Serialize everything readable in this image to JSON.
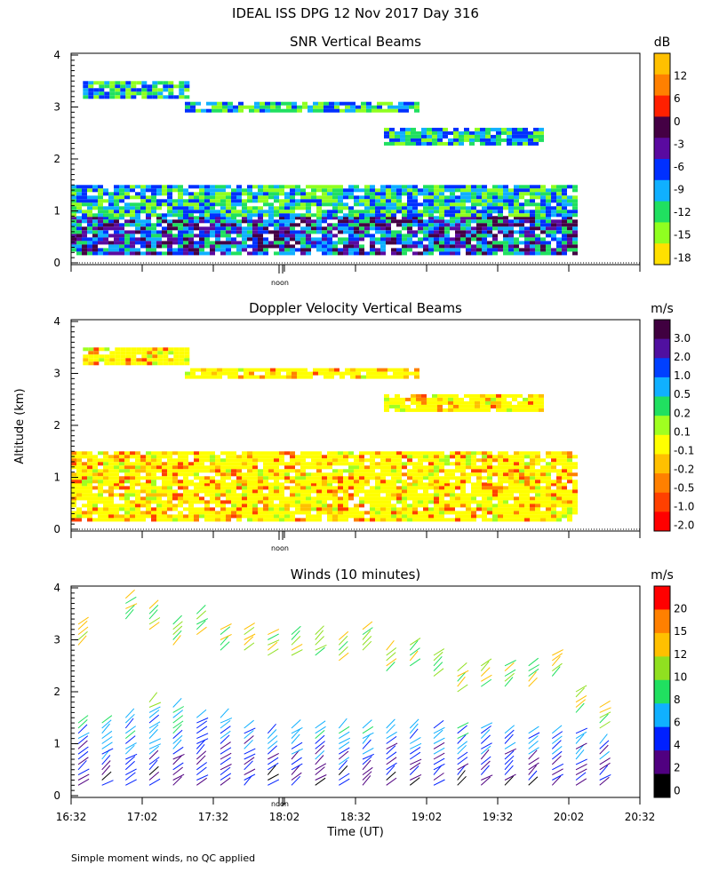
{
  "figure": {
    "title": "IDEAL ISS DPG  12 Nov 2017 Day 316",
    "ylabel": "Altitude (km)",
    "xlabel": "Time (UT)",
    "footnote": "Simple moment winds, no QC applied",
    "noon_label": "noon",
    "x_ticks": [
      "16:32",
      "17:02",
      "17:32",
      "18:02",
      "18:32",
      "19:02",
      "19:32",
      "20:02",
      "20:32"
    ]
  },
  "chart_data": [
    {
      "type": "heatmap",
      "title": "SNR Vertical Beams",
      "ylabel": "Altitude (km)",
      "xlim": [
        "16:32",
        "20:32"
      ],
      "ylim": [
        0,
        4
      ],
      "y_ticks": [
        0,
        1,
        2,
        3,
        4
      ],
      "colorbar": {
        "unit": "dB",
        "labels": [
          "12",
          "6",
          "0",
          "-3",
          "-6",
          "-9",
          "-12",
          "-15",
          "-18"
        ],
        "colors": [
          "#ffc000",
          "#ff8000",
          "#ff2000",
          "#440044",
          "#5a0aa0",
          "#0030ff",
          "#10b0ff",
          "#20e060",
          "#90ff20",
          "#ffe000"
        ]
      },
      "layers": [
        {
          "alt_km": [
            0.2,
            0.9
          ],
          "time": [
            "16:32",
            "20:05"
          ],
          "value_range_db": [
            -15,
            0
          ]
        },
        {
          "alt_km": [
            0.9,
            1.5
          ],
          "time": [
            "16:32",
            "20:05"
          ],
          "value_range_db": [
            -18,
            -6
          ]
        },
        {
          "alt_km": [
            2.3,
            2.6
          ],
          "time": [
            "18:44",
            "19:50"
          ],
          "value_range_db": [
            -18,
            -3
          ]
        },
        {
          "alt_km": [
            2.9,
            3.1
          ],
          "time": [
            "17:20",
            "18:58"
          ],
          "value_range_db": [
            -18,
            -6
          ]
        },
        {
          "alt_km": [
            3.2,
            3.5
          ],
          "time": [
            "16:37",
            "17:20"
          ],
          "value_range_db": [
            -18,
            -9
          ]
        }
      ]
    },
    {
      "type": "heatmap",
      "title": "Doppler Velocity Vertical Beams",
      "ylabel": "Altitude (km)",
      "xlim": [
        "16:32",
        "20:32"
      ],
      "ylim": [
        0,
        4
      ],
      "y_ticks": [
        0,
        1,
        2,
        3,
        4
      ],
      "colorbar": {
        "unit": "m/s",
        "labels": [
          "3.0",
          "2.0",
          "1.0",
          "0.5",
          "0.2",
          "0.1",
          "-0.1",
          "-0.2",
          "-0.5",
          "-1.0",
          "-2.0"
        ],
        "colors": [
          "#400040",
          "#5010a0",
          "#0040ff",
          "#10b0ff",
          "#20e060",
          "#a0ff20",
          "#ffff00",
          "#ffc000",
          "#ff8000",
          "#ff4000",
          "#ff0000"
        ]
      },
      "layers": [
        {
          "alt_km": [
            0.2,
            0.9
          ],
          "time": [
            "16:32",
            "20:05"
          ],
          "value_range_ms": [
            -1.0,
            0.2
          ]
        },
        {
          "alt_km": [
            0.9,
            1.5
          ],
          "time": [
            "16:32",
            "20:05"
          ],
          "value_range_ms": [
            -0.5,
            0.2
          ]
        },
        {
          "alt_km": [
            2.3,
            2.6
          ],
          "time": [
            "18:44",
            "19:50"
          ],
          "value_range_ms": [
            -0.5,
            0.1
          ]
        },
        {
          "alt_km": [
            2.9,
            3.1
          ],
          "time": [
            "17:20",
            "18:58"
          ],
          "value_range_ms": [
            -0.2,
            0.2
          ]
        },
        {
          "alt_km": [
            3.2,
            3.5
          ],
          "time": [
            "16:37",
            "17:20"
          ],
          "value_range_ms": [
            -0.5,
            0.1
          ]
        }
      ]
    },
    {
      "type": "scatter",
      "title": "Winds (10 minutes)",
      "ylabel": "Altitude (km)",
      "xlabel": "Time (UT)",
      "xlim": [
        "16:32",
        "20:32"
      ],
      "ylim": [
        0,
        4
      ],
      "y_ticks": [
        0,
        1,
        2,
        3,
        4
      ],
      "colorbar": {
        "unit": "m/s",
        "labels": [
          "20",
          "15",
          "12",
          "10",
          "8",
          "6",
          "4",
          "2",
          "0"
        ],
        "colors": [
          "#ff0000",
          "#ff8000",
          "#ffc000",
          "#90e020",
          "#20e060",
          "#10b0ff",
          "#0020ff",
          "#500080",
          "#000000"
        ]
      },
      "profiles": [
        {
          "time": "16:32",
          "tops_km": [
            1.5,
            3.4
          ]
        },
        {
          "time": "16:42",
          "tops_km": [
            1.5
          ]
        },
        {
          "time": "16:52",
          "tops_km": [
            1.6,
            3.9
          ]
        },
        {
          "time": "17:02",
          "tops_km": [
            1.9,
            3.7
          ]
        },
        {
          "time": "17:12",
          "tops_km": [
            1.8,
            3.4
          ]
        },
        {
          "time": "17:22",
          "tops_km": [
            1.6,
            3.6
          ]
        },
        {
          "time": "17:32",
          "tops_km": [
            1.6,
            3.3
          ]
        },
        {
          "time": "17:42",
          "tops_km": [
            1.3,
            3.3
          ]
        },
        {
          "time": "17:52",
          "tops_km": [
            1.2,
            3.2
          ]
        },
        {
          "time": "18:02",
          "tops_km": [
            1.4,
            3.2
          ]
        },
        {
          "time": "18:12",
          "tops_km": [
            1.4,
            3.2
          ]
        },
        {
          "time": "18:22",
          "tops_km": [
            1.3,
            3.1
          ]
        },
        {
          "time": "18:32",
          "tops_km": [
            1.3,
            3.3
          ]
        },
        {
          "time": "18:42",
          "tops_km": [
            1.4,
            2.9
          ]
        },
        {
          "time": "18:52",
          "tops_km": [
            1.3,
            3.0
          ]
        },
        {
          "time": "19:02",
          "tops_km": [
            1.4,
            2.8
          ]
        },
        {
          "time": "19:12",
          "tops_km": [
            1.3,
            2.5
          ]
        },
        {
          "time": "19:22",
          "tops_km": [
            1.3,
            2.6
          ]
        },
        {
          "time": "19:32",
          "tops_km": [
            1.2,
            2.6
          ]
        },
        {
          "time": "19:42",
          "tops_km": [
            1.2,
            2.6
          ]
        },
        {
          "time": "19:52",
          "tops_km": [
            1.2,
            2.8
          ]
        },
        {
          "time": "20:02",
          "tops_km": [
            1.2,
            2.1
          ]
        },
        {
          "time": "20:12",
          "tops_km": [
            1.0,
            1.8
          ]
        }
      ]
    }
  ]
}
